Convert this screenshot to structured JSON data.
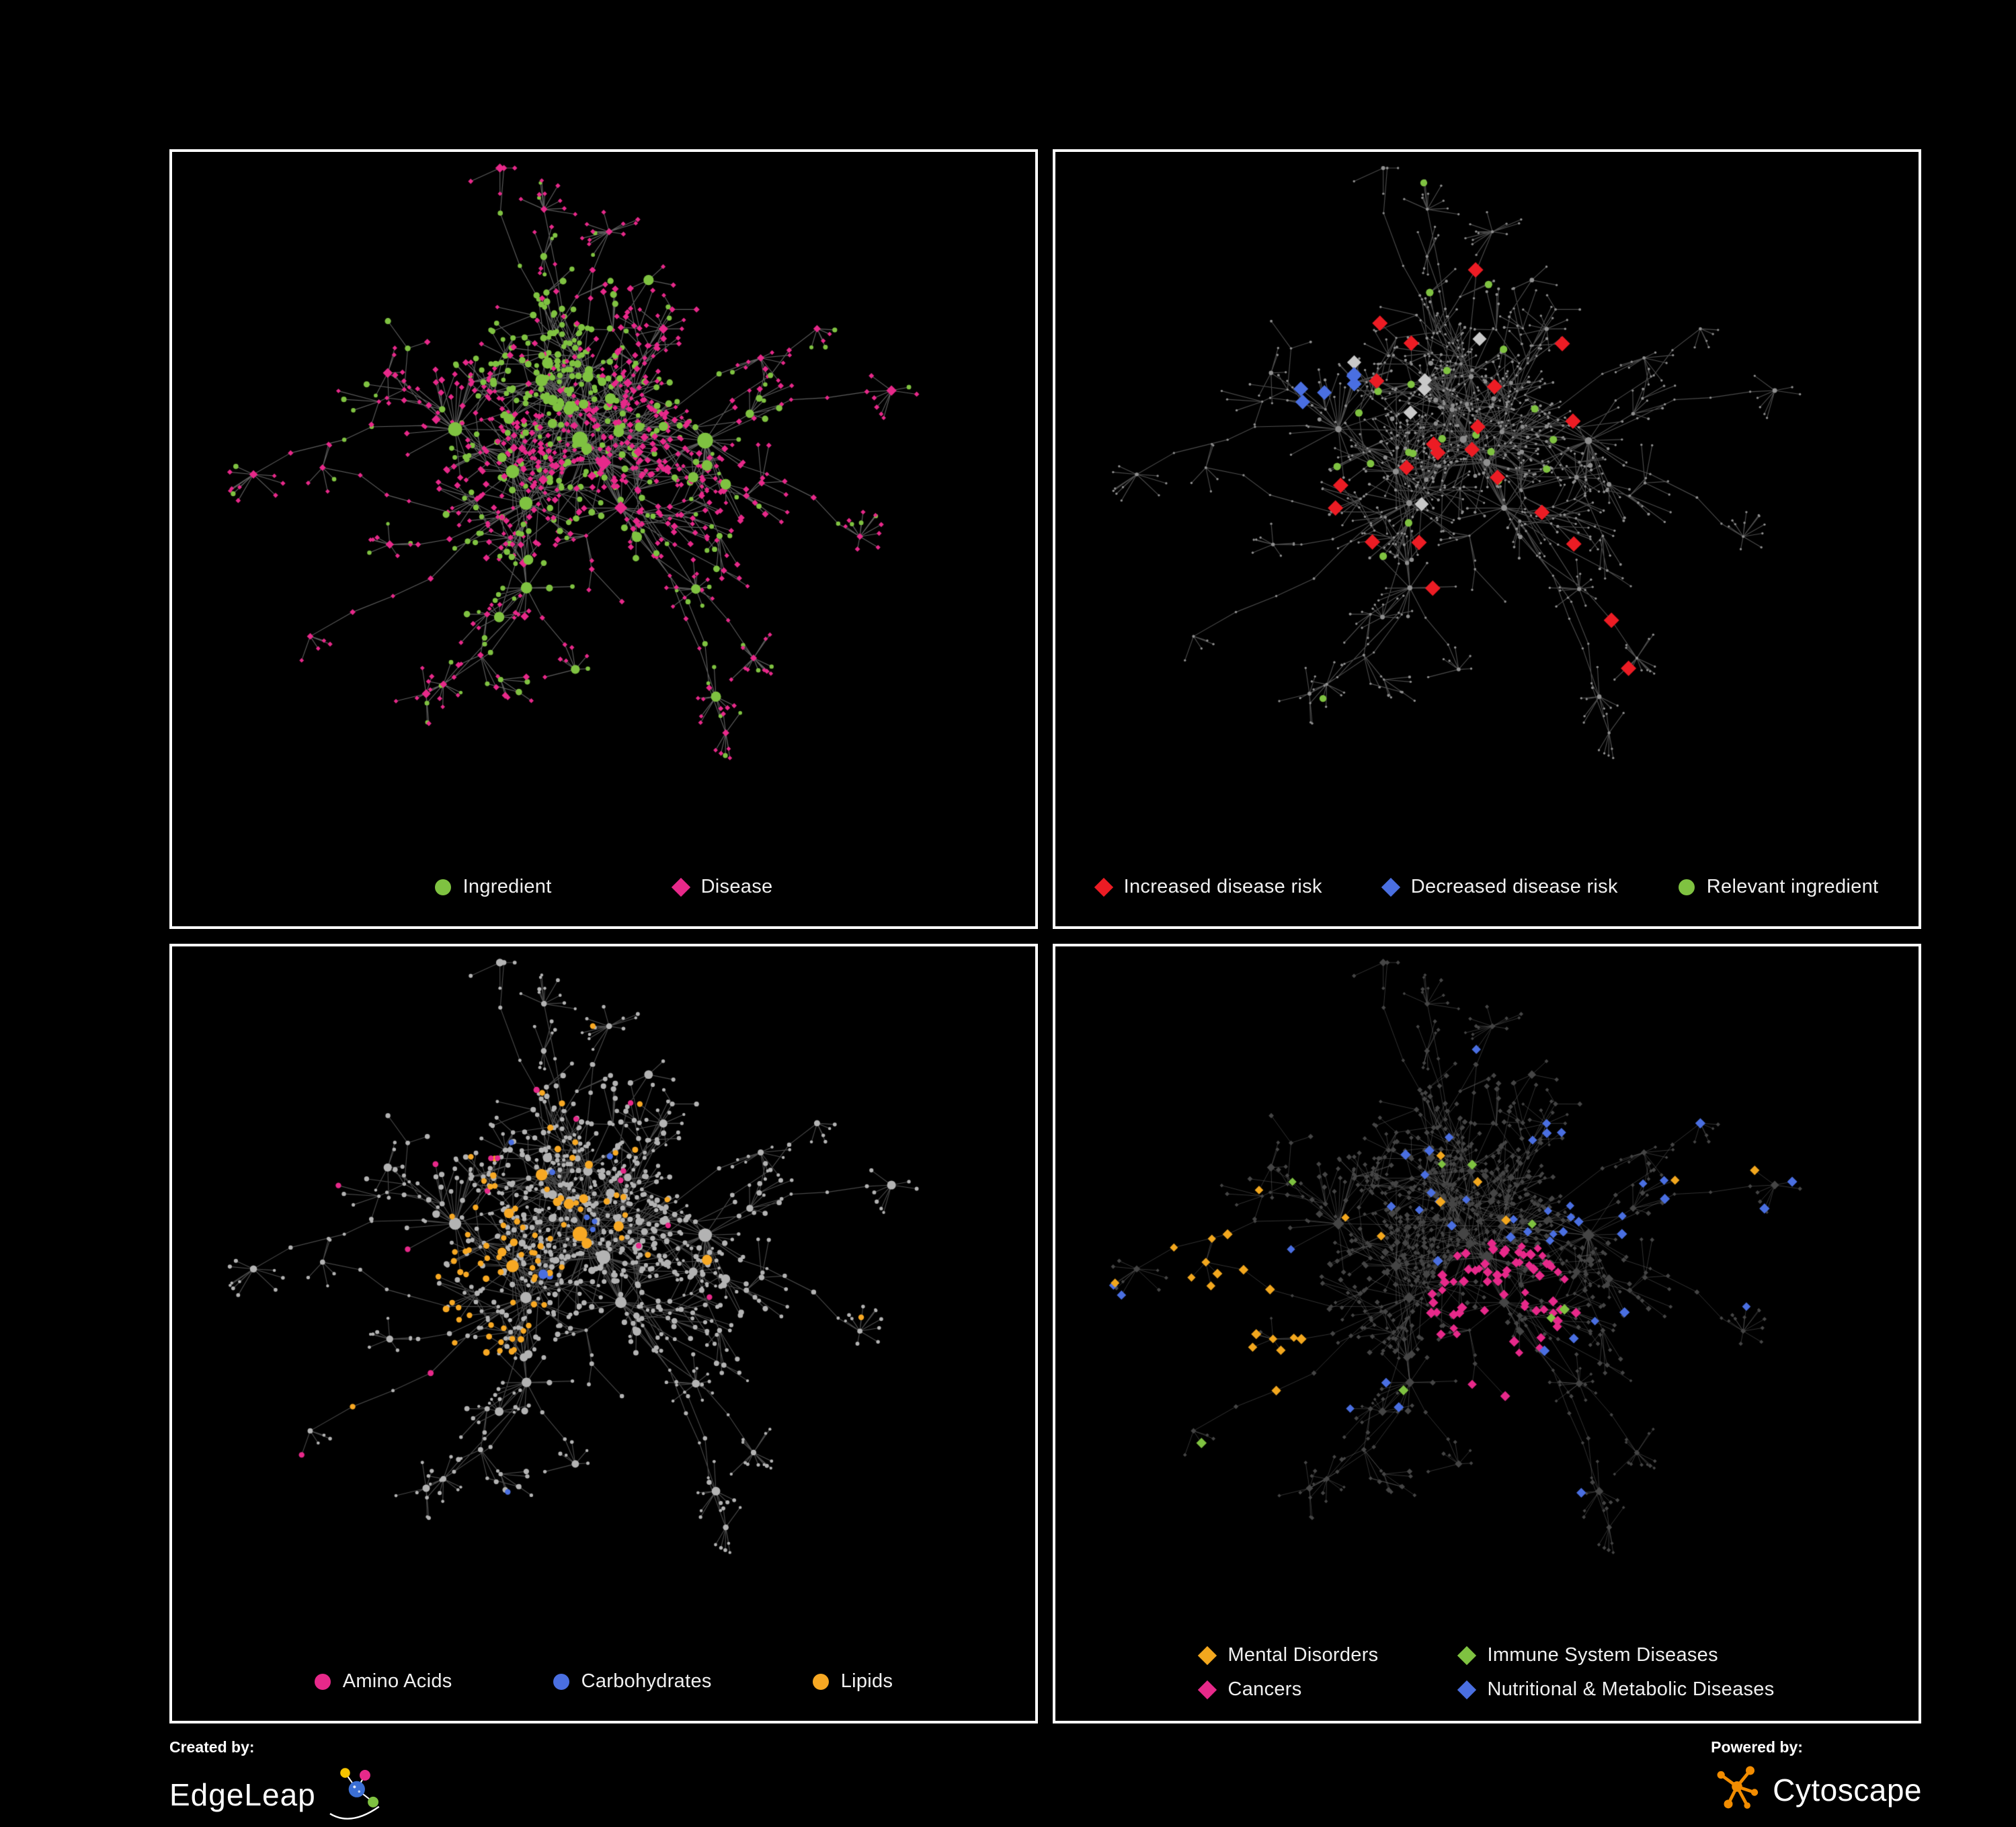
{
  "figure": {
    "background": "#000000",
    "panel_border_color": "#ffffff"
  },
  "panels": [
    {
      "name": "ingredient-disease-network",
      "legend": [
        {
          "label": "Ingredient",
          "shape": "circle",
          "color": "#7FC241"
        },
        {
          "label": "Disease",
          "shape": "diamond",
          "color": "#E7298A"
        }
      ],
      "render": {
        "edge_color": "rgba(170,170,170,0.55)",
        "base_node_color": "#9a9a9a"
      }
    },
    {
      "name": "disease-risk-network",
      "legend": [
        {
          "label": "Increased disease risk",
          "shape": "diamond",
          "color": "#EC1C24"
        },
        {
          "label": "Decreased disease risk",
          "shape": "diamond",
          "color": "#4A6FE1"
        },
        {
          "label": "Relevant ingredient",
          "shape": "circle",
          "color": "#7FC241"
        }
      ],
      "render": {
        "edge_color": "rgba(150,150,150,0.5)",
        "base_node_color": "#8f8f8f",
        "neutral_highlight_color": "#c9c9c9"
      }
    },
    {
      "name": "nutrient-class-network",
      "legend": [
        {
          "label": "Amino Acids",
          "shape": "circle",
          "color": "#E7298A"
        },
        {
          "label": "Carbohydrates",
          "shape": "circle",
          "color": "#4A6FE1"
        },
        {
          "label": "Lipids",
          "shape": "circle",
          "color": "#F7A823"
        }
      ],
      "render": {
        "edge_color": "rgba(160,160,160,0.45)",
        "base_node_color": "#b3b3b3"
      }
    },
    {
      "name": "disease-class-network",
      "legend": [
        {
          "label": "Mental Disorders",
          "shape": "diamond",
          "color": "#F2A71E"
        },
        {
          "label": "Immune System Diseases",
          "shape": "diamond",
          "color": "#7FC241"
        },
        {
          "label": "Cancers",
          "shape": "diamond",
          "color": "#E7298A"
        },
        {
          "label": "Nutritional & Metabolic Diseases",
          "shape": "diamond",
          "color": "#4A6FE1"
        }
      ],
      "render": {
        "edge_color": "rgba(120,120,120,0.42)",
        "base_node_color": "#454545"
      }
    }
  ],
  "footer": {
    "created_by_label": "Created by:",
    "created_by_name": "EdgeLeap",
    "powered_by_label": "Powered by:",
    "powered_by_name": "Cytoscape"
  }
}
